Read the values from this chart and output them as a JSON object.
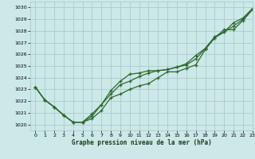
{
  "xlabel": "Graphe pression niveau de la mer (hPa)",
  "xlim": [
    -0.5,
    23
  ],
  "ylim": [
    1019.5,
    1030.5
  ],
  "yticks": [
    1020,
    1021,
    1022,
    1023,
    1024,
    1025,
    1026,
    1027,
    1028,
    1029,
    1030
  ],
  "xticks": [
    0,
    1,
    2,
    3,
    4,
    5,
    6,
    7,
    8,
    9,
    10,
    11,
    12,
    13,
    14,
    15,
    16,
    17,
    18,
    19,
    20,
    21,
    22,
    23
  ],
  "background_color": "#cce8e8",
  "grid_color": "#aacccc",
  "line_color": "#2d6a2d",
  "line_width": 0.9,
  "marker": "+",
  "marker_size": 3,
  "marker_edge_width": 0.9,
  "line1_y": [
    1023.2,
    1022.1,
    1021.5,
    1020.8,
    1020.2,
    1020.2,
    1020.5,
    1021.2,
    1022.3,
    1022.6,
    1023.0,
    1023.3,
    1023.5,
    1024.0,
    1024.5,
    1024.5,
    1024.8,
    1025.1,
    1026.4,
    1027.4,
    1028.1,
    1028.1,
    1028.9,
    1029.8
  ],
  "line2_y": [
    1023.2,
    1022.1,
    1021.5,
    1020.8,
    1020.2,
    1020.2,
    1020.9,
    1021.7,
    1022.6,
    1023.4,
    1023.7,
    1024.1,
    1024.4,
    1024.6,
    1024.7,
    1024.9,
    1025.1,
    1025.6,
    1026.5,
    1027.5,
    1027.9,
    1028.7,
    1029.1,
    1029.9
  ],
  "line3_y": [
    1023.2,
    1022.1,
    1021.5,
    1020.8,
    1020.2,
    1020.2,
    1020.7,
    1021.7,
    1022.9,
    1023.7,
    1024.3,
    1024.4,
    1024.6,
    1024.6,
    1024.7,
    1024.9,
    1025.2,
    1025.9,
    1026.5,
    1027.4,
    1027.9,
    1028.4,
    1029.0,
    1029.9
  ]
}
